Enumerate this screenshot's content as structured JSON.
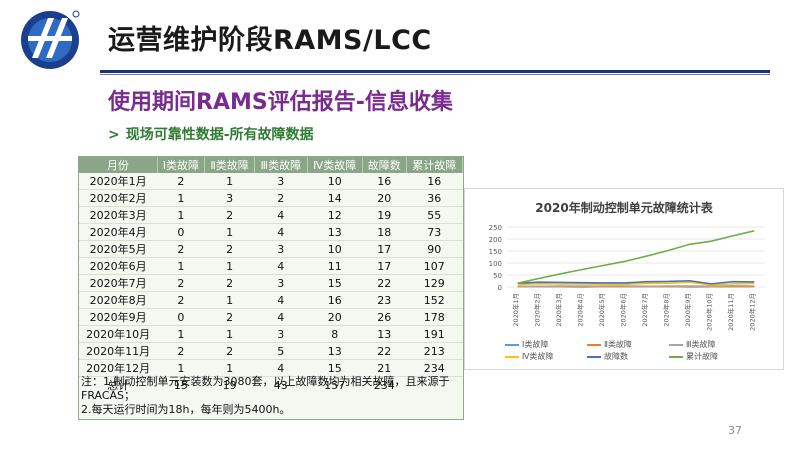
{
  "header": {
    "title": "运营维护阶段RAMS/LCC"
  },
  "subtitle": "使用期间RAMS评估报告-信息收集",
  "bullet": "现场可靠性数据-所有故障数据",
  "table": {
    "headers": [
      "月份",
      "Ⅰ类故障",
      "Ⅱ类故障",
      "Ⅲ类故障",
      "Ⅳ类故障",
      "故障数",
      "累计故障"
    ],
    "rows": [
      [
        "2020年1月",
        "2",
        "1",
        "3",
        "10",
        "16",
        "16"
      ],
      [
        "2020年2月",
        "1",
        "3",
        "2",
        "14",
        "20",
        "36"
      ],
      [
        "2020年3月",
        "1",
        "2",
        "4",
        "12",
        "19",
        "55"
      ],
      [
        "2020年4月",
        "0",
        "1",
        "4",
        "13",
        "18",
        "73"
      ],
      [
        "2020年5月",
        "2",
        "2",
        "3",
        "10",
        "17",
        "90"
      ],
      [
        "2020年6月",
        "1",
        "1",
        "4",
        "11",
        "17",
        "107"
      ],
      [
        "2020年7月",
        "2",
        "2",
        "3",
        "15",
        "22",
        "129"
      ],
      [
        "2020年8月",
        "2",
        "1",
        "4",
        "16",
        "23",
        "152"
      ],
      [
        "2020年9月",
        "0",
        "2",
        "4",
        "20",
        "26",
        "178"
      ],
      [
        "2020年10月",
        "1",
        "1",
        "3",
        "8",
        "13",
        "191"
      ],
      [
        "2020年11月",
        "2",
        "2",
        "5",
        "13",
        "22",
        "213"
      ],
      [
        "2020年12月",
        "1",
        "1",
        "4",
        "15",
        "21",
        "234"
      ]
    ],
    "total": [
      "总计",
      "15",
      "19",
      "43",
      "157",
      "234",
      ""
    ],
    "note_line1": "注：1.制动控制单元安装数为3080套，以上故障数均为相关故障，且来源于FRACAS；",
    "note_line2": "2.每天运行时间为18h，每年则为5400h。"
  },
  "chart_data": {
    "type": "line",
    "title": "2020年制动控制单元故障统计表",
    "categories": [
      "2020年1月",
      "2020年2月",
      "2020年3月",
      "2020年4月",
      "2020年5月",
      "2020年6月",
      "2020年7月",
      "2020年8月",
      "2020年9月",
      "2020年10月",
      "2020年11月",
      "2020年12月"
    ],
    "series": [
      {
        "name": "Ⅰ类故障",
        "color": "#5b9bd5",
        "values": [
          2,
          1,
          1,
          0,
          2,
          1,
          2,
          2,
          0,
          1,
          2,
          1
        ]
      },
      {
        "name": "Ⅱ类故障",
        "color": "#ed7d31",
        "values": [
          1,
          3,
          2,
          1,
          2,
          1,
          2,
          1,
          2,
          1,
          2,
          1
        ]
      },
      {
        "name": "Ⅲ类故障",
        "color": "#a5a5a5",
        "values": [
          3,
          2,
          4,
          4,
          3,
          4,
          3,
          4,
          4,
          3,
          5,
          4
        ]
      },
      {
        "name": "Ⅳ类故障",
        "color": "#ffc000",
        "values": [
          10,
          14,
          12,
          13,
          10,
          11,
          15,
          16,
          20,
          8,
          13,
          15
        ]
      },
      {
        "name": "故障数",
        "color": "#4472c4",
        "values": [
          16,
          20,
          19,
          18,
          17,
          17,
          22,
          23,
          26,
          13,
          22,
          21
        ]
      },
      {
        "name": "累计故障",
        "color": "#70ad47",
        "values": [
          16,
          36,
          55,
          73,
          90,
          107,
          129,
          152,
          178,
          191,
          213,
          234
        ]
      }
    ],
    "yticks": [
      "0",
      "50",
      "100",
      "150",
      "200",
      "250"
    ],
    "ylim": [
      0,
      250
    ],
    "legend": "bottom",
    "grid": true
  },
  "page_number": "37"
}
